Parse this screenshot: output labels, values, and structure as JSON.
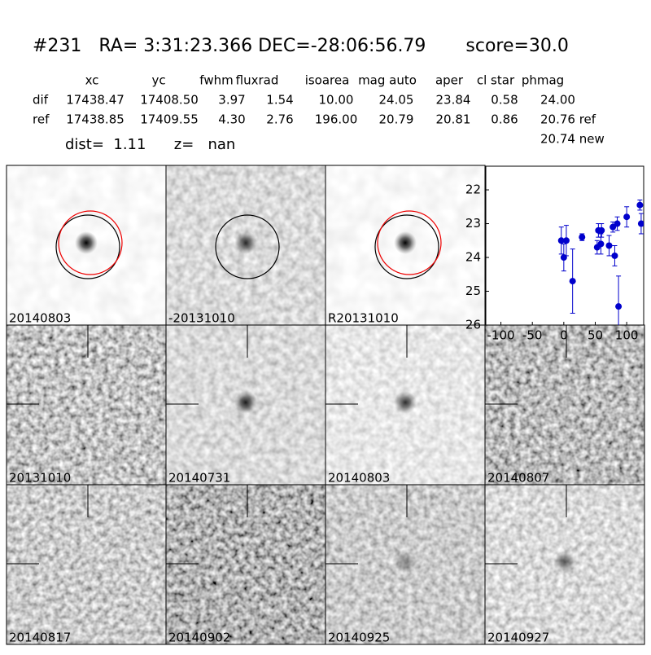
{
  "header": {
    "title": "#231   RA= 3:31:23.366 DEC=-28:06:56.79       score=30.0",
    "dist_line": "dist=  1.11      z=   nan"
  },
  "table": {
    "columns": [
      "xc",
      "yc",
      "fwhm",
      "fluxrad",
      "isoarea",
      "mag auto",
      "aper",
      "cl star",
      "phmag"
    ],
    "rows": [
      {
        "label": "dif",
        "cells": [
          "17438.47",
          "17408.50",
          "3.97",
          "1.54",
          "10.00",
          "24.05",
          "23.84",
          "0.58",
          "24.00"
        ]
      },
      {
        "label": "ref",
        "cells": [
          "17438.85",
          "17409.55",
          "4.30",
          "2.76",
          "196.00",
          "20.79",
          "20.81",
          "0.86",
          "20.76 ref"
        ]
      }
    ],
    "extra": "20.74 new"
  },
  "stamps": [
    {
      "label": "20140803"
    },
    {
      "label": "-20131010"
    },
    {
      "label": "R20131010"
    },
    {
      "label": "20131010"
    },
    {
      "label": "20140731"
    },
    {
      "label": "20140803",
      "color": "#ff0000"
    },
    {
      "label": "20140807"
    },
    {
      "label": "20140817"
    },
    {
      "label": "20140902"
    },
    {
      "label": "20140925"
    },
    {
      "label": "20140927"
    }
  ],
  "chart_data": {
    "type": "errorbar",
    "color": "#0000cc",
    "x": [
      -4,
      0,
      4,
      14,
      29,
      53,
      55,
      59,
      60,
      72,
      78,
      81,
      85,
      87,
      100,
      121,
      123
    ],
    "values": [
      23.5,
      24.0,
      23.5,
      24.7,
      23.4,
      23.7,
      23.2,
      23.6,
      23.2,
      23.65,
      23.1,
      23.95,
      23.0,
      25.45,
      22.8,
      22.45,
      23.0
    ],
    "errors": [
      0.4,
      0.4,
      0.45,
      0.95,
      0.1,
      0.2,
      0.2,
      0.3,
      0.2,
      0.3,
      0.15,
      0.3,
      0.2,
      0.9,
      0.3,
      0.15,
      0.3
    ],
    "xlim": [
      -124,
      127
    ],
    "ylim": [
      26,
      21.3
    ],
    "xticks": [
      -100,
      -50,
      0,
      50,
      100
    ],
    "yticks": [
      22,
      23,
      24,
      25,
      26
    ]
  }
}
